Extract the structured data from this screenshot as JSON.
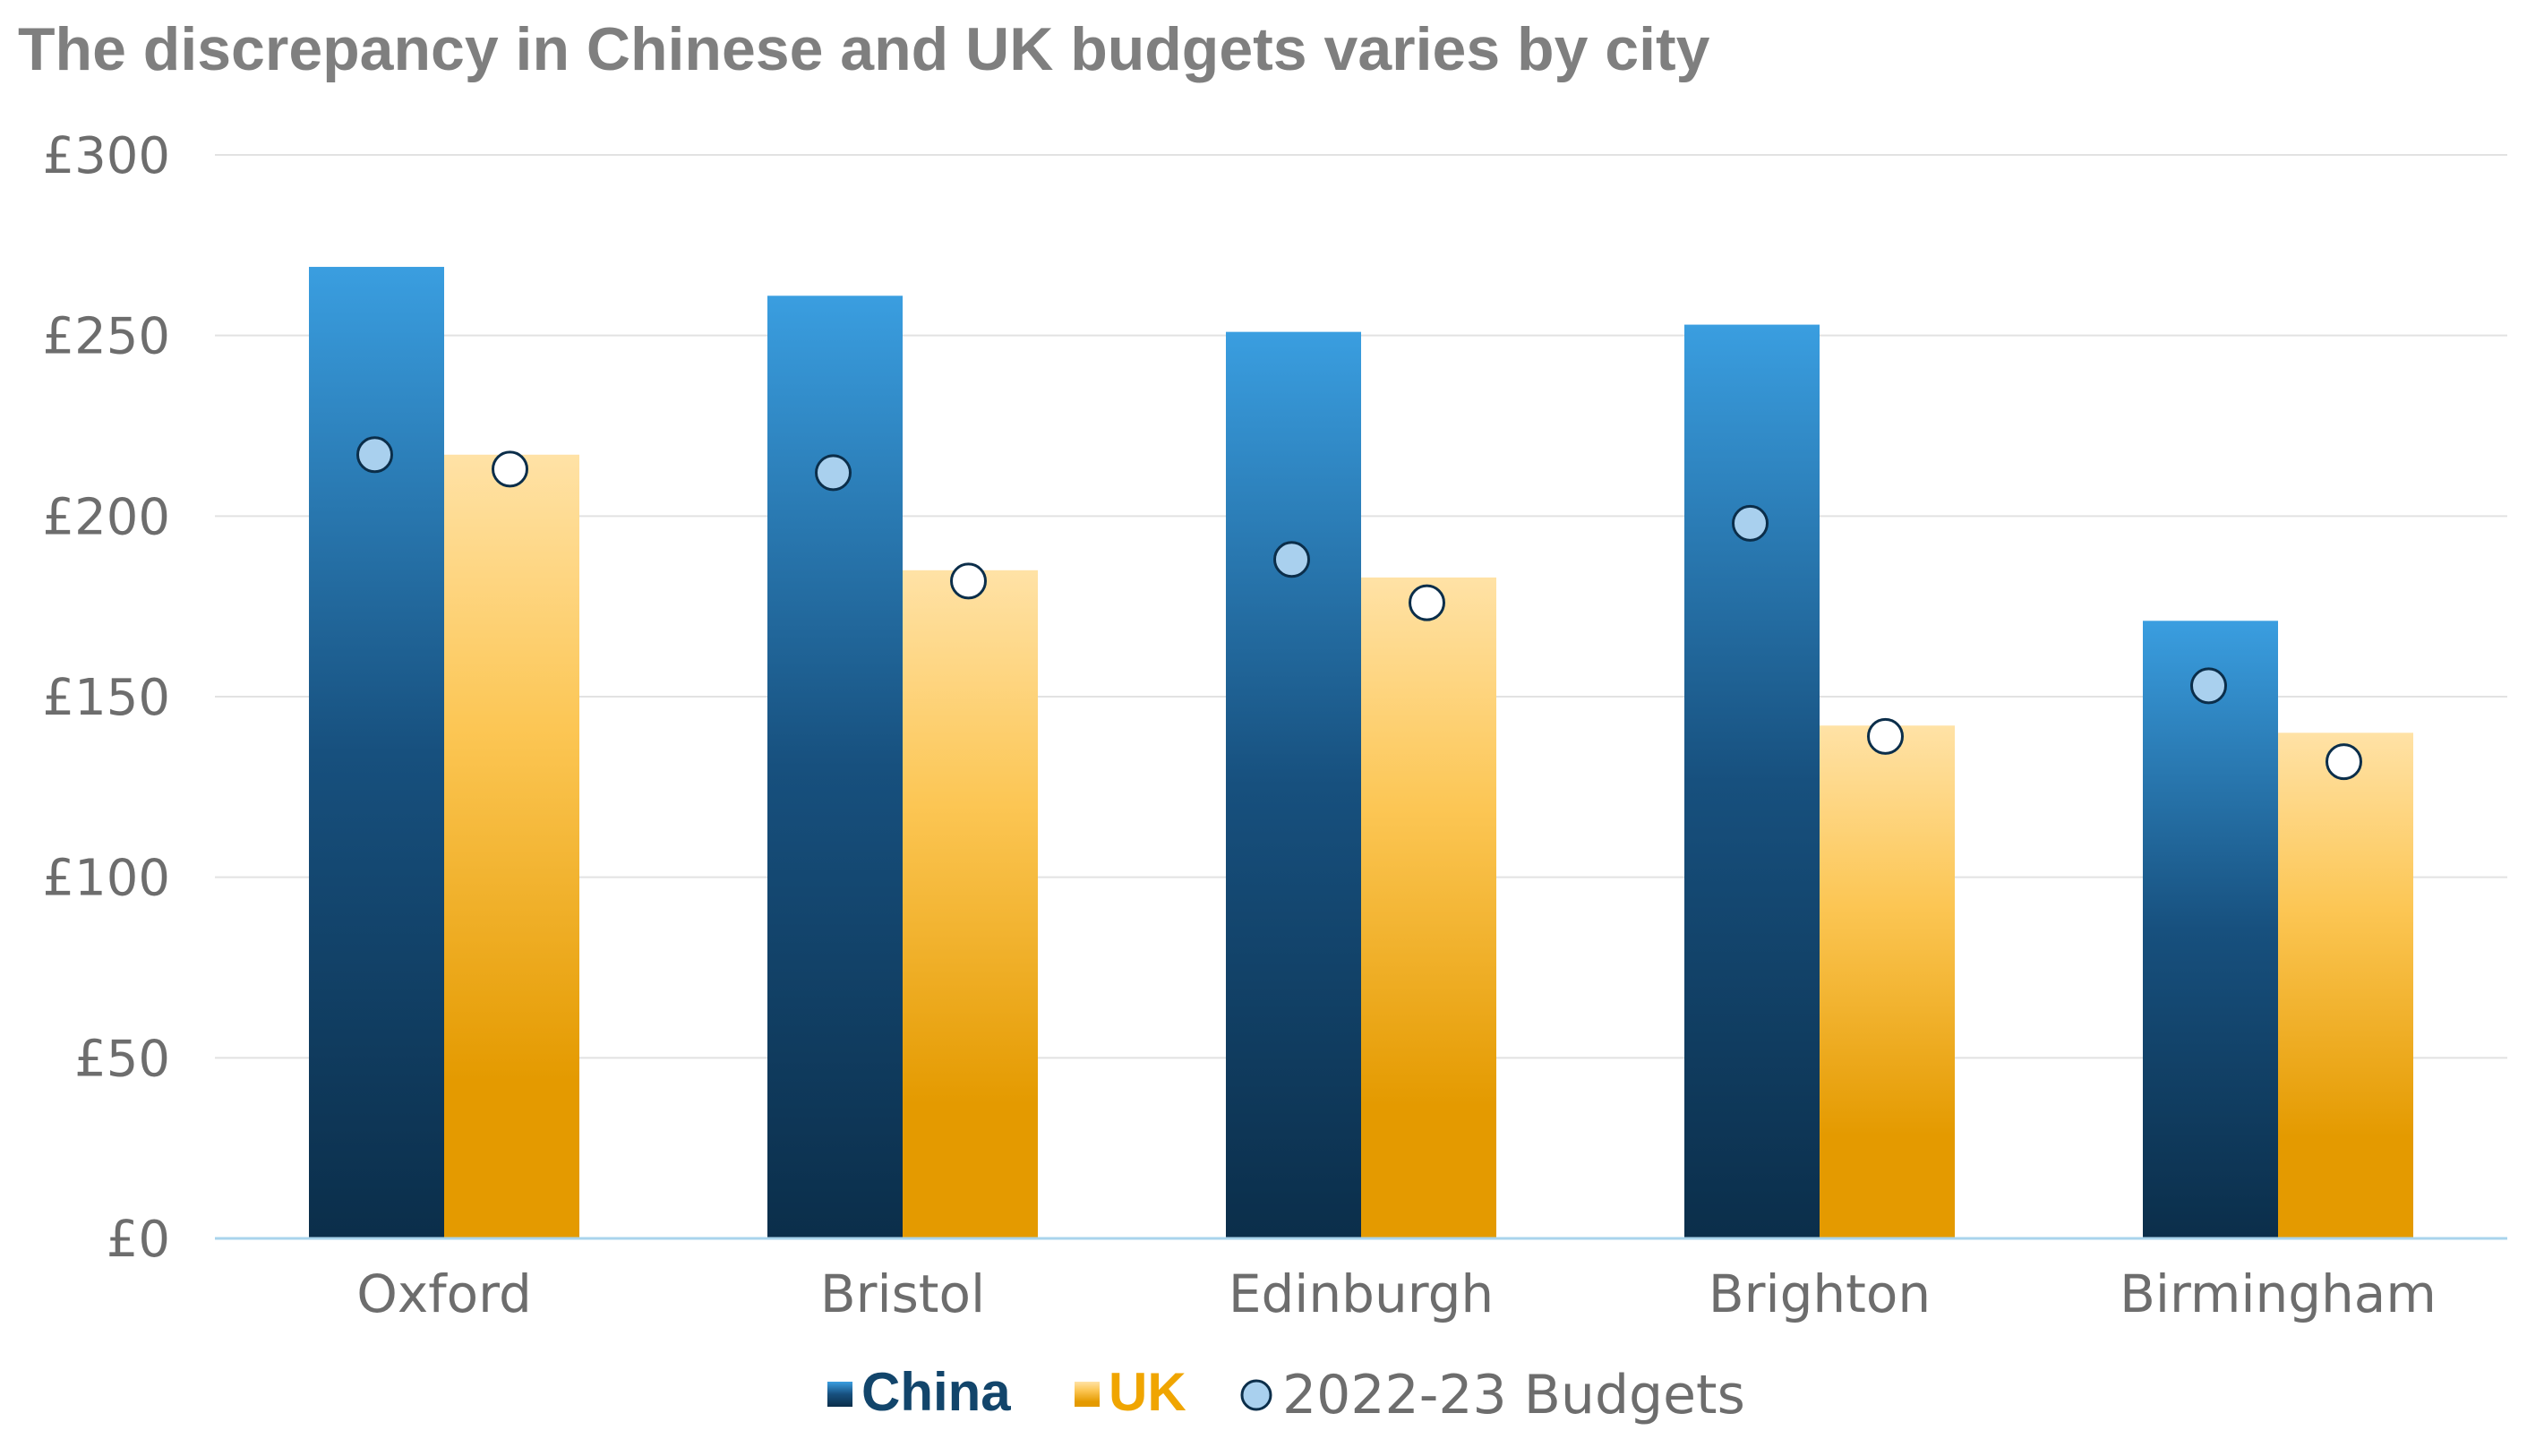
{
  "chart_data": {
    "type": "bar",
    "title": "The discrepancy in Chinese and UK budgets varies by city",
    "categories": [
      "Oxford",
      "Bristol",
      "Edinburgh",
      "Brighton",
      "Birmingham"
    ],
    "series": [
      {
        "name": "China",
        "kind": "bar",
        "color_top": "#3a9ee0",
        "color_bottom": "#0b2e4a",
        "values": [
          269,
          261,
          251,
          253,
          171
        ]
      },
      {
        "name": "UK",
        "kind": "bar",
        "color_top": "#ffe0a0",
        "color_bottom": "#e49a00",
        "values": [
          217,
          185,
          183,
          142,
          140
        ]
      }
    ],
    "budgets": {
      "name": "2022-23 Budgets",
      "kind": "marker",
      "china_marker_color": "#a9d0ee",
      "uk_marker_color": "#ffffff",
      "china_values": [
        217,
        212,
        188,
        198,
        153
      ],
      "uk_values": [
        213,
        182,
        176,
        139,
        132
      ]
    },
    "ylim": [
      0,
      300
    ],
    "yticks": [
      0,
      50,
      100,
      150,
      200,
      250,
      300
    ],
    "ytick_labels": [
      "£0",
      "£50",
      "£100",
      "£150",
      "£200",
      "£250",
      "£300"
    ],
    "grid": true,
    "legend_position": "bottom-center",
    "xlabel": "",
    "ylabel": ""
  },
  "legend": {
    "china": "China",
    "uk": "UK",
    "budgets": "2022-23 Budgets"
  }
}
